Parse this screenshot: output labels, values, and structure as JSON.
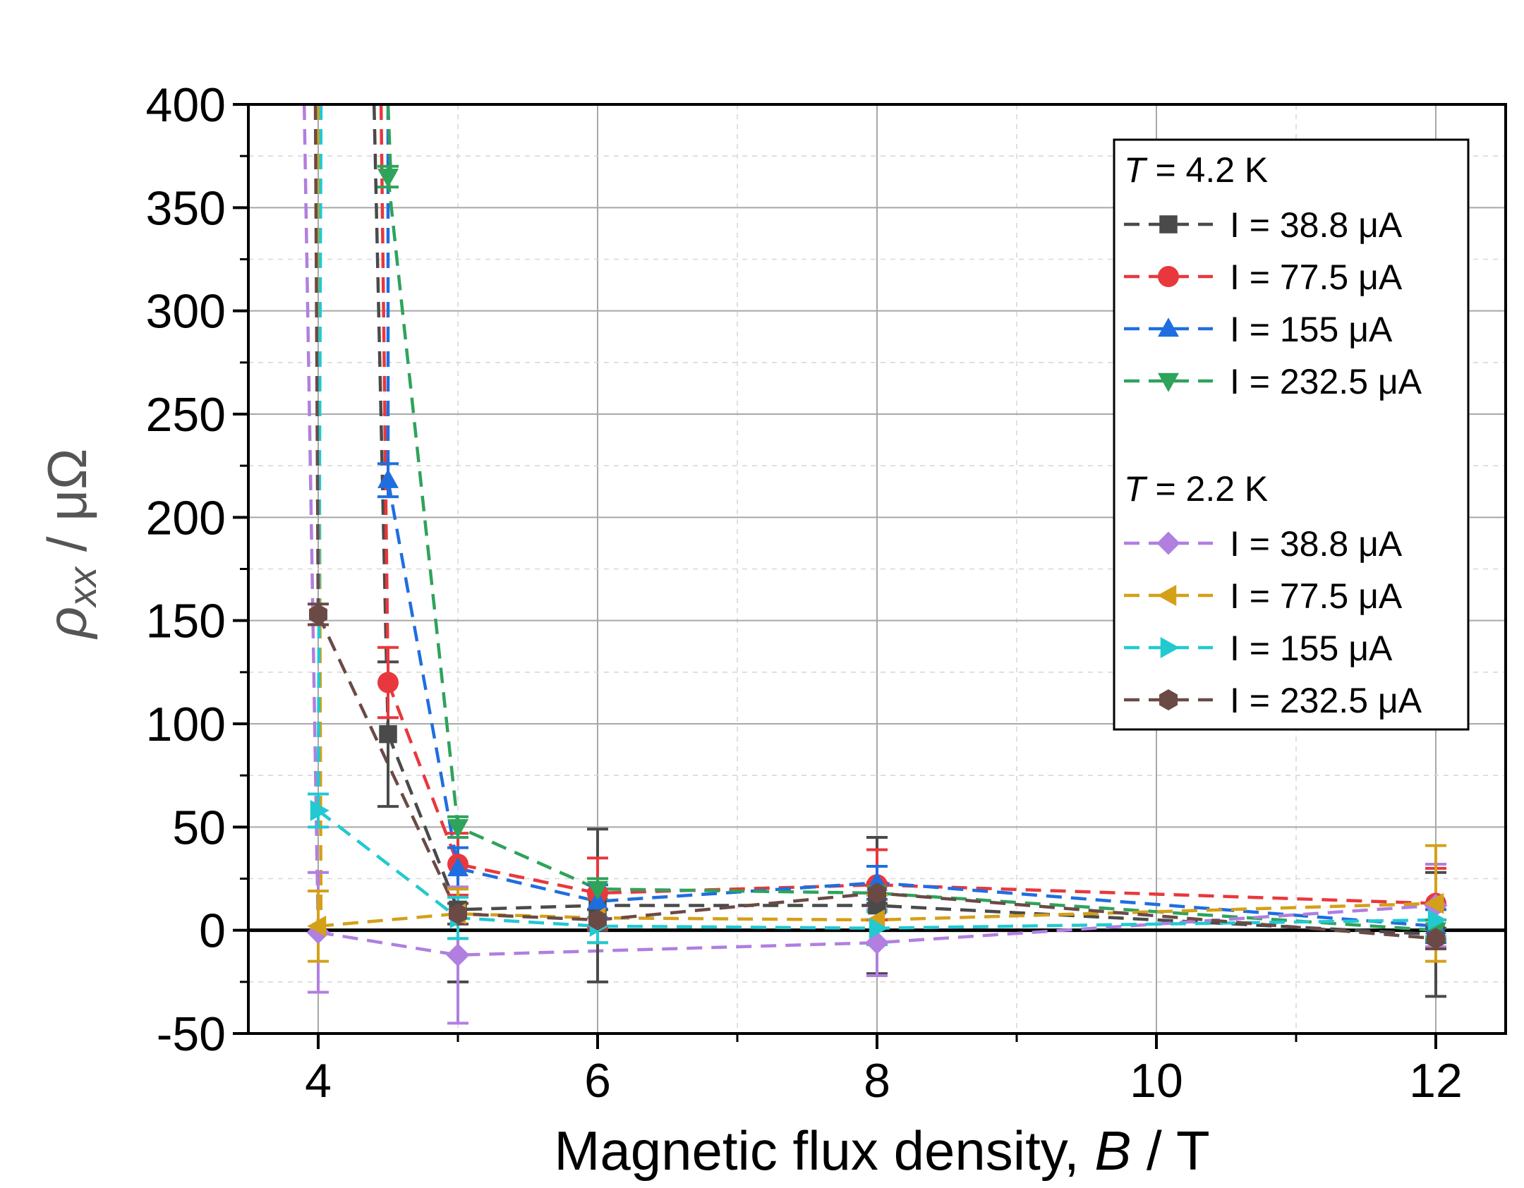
{
  "chart_data": {
    "type": "line",
    "title": "",
    "xlabel_prefix": "Magnetic flux density, ",
    "xlabel_var": "B",
    "xlabel_suffix": " / T",
    "ylabel_var": "ρ",
    "ylabel_sub": "xx",
    "ylabel_suffix": " / μΩ",
    "xlim": [
      3.5,
      12.5
    ],
    "ylim": [
      -50,
      400
    ],
    "xticks": [
      4,
      6,
      8,
      10,
      12
    ],
    "xtick_labels": [
      "4",
      "6",
      "8",
      "10",
      "12"
    ],
    "yticks": [
      -50,
      0,
      50,
      100,
      150,
      200,
      250,
      300,
      350,
      400
    ],
    "ytick_labels": [
      "-50",
      "0",
      "50",
      "100",
      "150",
      "200",
      "250",
      "300",
      "350",
      "400"
    ],
    "grid": true,
    "legend_position": "top-right",
    "legend_groups": [
      {
        "T_var": "T",
        "T_text": " = 4.2 K"
      },
      {
        "T_var": "T",
        "T_text": " = 2.2 K"
      }
    ],
    "series": [
      {
        "name": "I = 38.8 μA",
        "group": 0,
        "color": "#4a4a4a",
        "marker": "square",
        "x": [
          4.5,
          5,
          6,
          8,
          12
        ],
        "y": [
          95,
          10,
          12,
          12,
          -2
        ],
        "err": [
          35,
          35,
          37,
          33,
          30
        ]
      },
      {
        "name": "I = 77.5 μA",
        "group": 0,
        "color": "#e8383d",
        "marker": "circle",
        "x": [
          4.5,
          5,
          6,
          8,
          12
        ],
        "y": [
          120,
          32,
          18,
          22,
          13
        ],
        "err": [
          17,
          15,
          17,
          17,
          17
        ]
      },
      {
        "name": "I = 155 μA",
        "group": 0,
        "color": "#1f6ee0",
        "marker": "triangle-up",
        "x": [
          4.5,
          5,
          6,
          8,
          12
        ],
        "y": [
          218,
          30,
          14,
          23,
          2
        ],
        "err": [
          8,
          10,
          8,
          8,
          8
        ]
      },
      {
        "name": "I = 232.5 μA",
        "group": 0,
        "color": "#2ea35a",
        "marker": "triangle-down",
        "x": [
          4.5,
          5,
          6,
          8,
          12
        ],
        "y": [
          365,
          50,
          20,
          18,
          0
        ],
        "err": [
          5,
          5,
          5,
          5,
          5
        ]
      },
      {
        "name": "I = 38.8 μA",
        "group": 1,
        "color": "#b07fe0",
        "marker": "diamond",
        "x": [
          4,
          5,
          8,
          12
        ],
        "y": [
          -1,
          -12,
          -6,
          12
        ],
        "err": [
          29,
          33,
          16,
          20
        ]
      },
      {
        "name": "I = 77.5 μA",
        "group": 1,
        "color": "#d4a017",
        "marker": "triangle-left",
        "x": [
          4,
          5,
          6,
          8,
          12
        ],
        "y": [
          2,
          8,
          6,
          5,
          13
        ],
        "err": [
          17,
          12,
          12,
          12,
          28
        ]
      },
      {
        "name": "I = 155 μA",
        "group": 1,
        "color": "#22c9d1",
        "marker": "triangle-right",
        "x": [
          4,
          5,
          6,
          8,
          12
        ],
        "y": [
          58,
          6,
          2,
          1,
          5
        ],
        "err": [
          8,
          10,
          8,
          8,
          8
        ]
      },
      {
        "name": "I = 232.5 μA",
        "group": 1,
        "color": "#6b4a46",
        "marker": "hexagon",
        "x": [
          4,
          5,
          6,
          8,
          12
        ],
        "y": [
          153,
          8,
          5,
          18,
          -4
        ],
        "err": [
          5,
          5,
          5,
          5,
          5
        ]
      }
    ],
    "offscale_lines": [
      {
        "color": "#b07fe0",
        "x": [
          3.9,
          4.0
        ],
        "y": [
          400,
          -1
        ]
      },
      {
        "color": "#d4a017",
        "x": [
          4.0,
          4.02
        ],
        "y": [
          400,
          2
        ]
      },
      {
        "color": "#22c9d1",
        "x": [
          4.02,
          4.0
        ],
        "y": [
          400,
          58
        ]
      },
      {
        "color": "#6b4a46",
        "x": [
          3.98,
          4.0
        ],
        "y": [
          400,
          153
        ]
      },
      {
        "color": "#4a4a4a",
        "x": [
          4.4,
          4.5
        ],
        "y": [
          400,
          95
        ]
      },
      {
        "color": "#e8383d",
        "x": [
          4.45,
          4.5
        ],
        "y": [
          400,
          120
        ]
      },
      {
        "color": "#1f6ee0",
        "x": [
          4.5,
          4.5
        ],
        "y": [
          400,
          218
        ]
      },
      {
        "color": "#2ea35a",
        "x": [
          4.5,
          4.52
        ],
        "y": [
          400,
          365
        ]
      }
    ]
  }
}
